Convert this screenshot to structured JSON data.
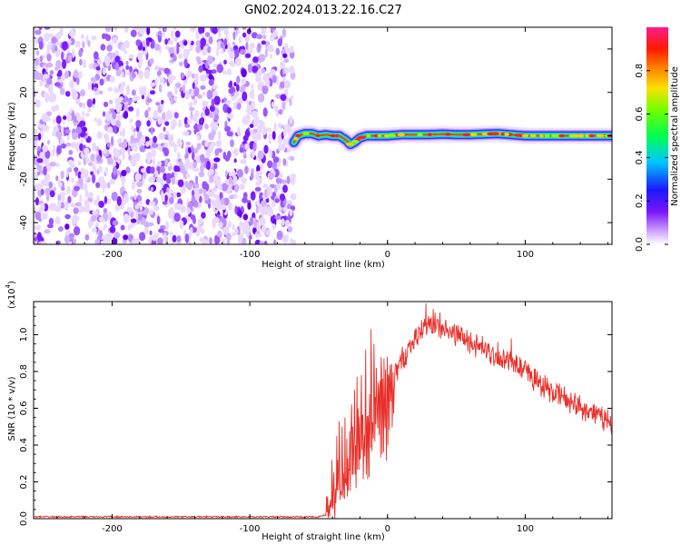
{
  "chart_data": [
    {
      "type": "heatmap",
      "title": "GN02.2024.013.22.16.C27",
      "xlabel": "Height of straight line (km)",
      "ylabel": "Frequency (Hz)",
      "xlim": [
        -257,
        163
      ],
      "ylim": [
        -50,
        50
      ],
      "x_ticks": [
        -200,
        -100,
        0,
        100
      ],
      "x_tick_labels": [
        "-200",
        "-100",
        "0",
        "100"
      ],
      "y_ticks": [
        -40,
        -20,
        0,
        20,
        40
      ],
      "y_tick_labels": [
        "-40",
        "-20",
        "0",
        "20",
        "40"
      ],
      "noise_region_x": [
        -257,
        -68
      ],
      "signal_ridge": [
        [
          -68,
          -3
        ],
        [
          -65,
          0
        ],
        [
          -60,
          1
        ],
        [
          -55,
          1
        ],
        [
          -50,
          0
        ],
        [
          -45,
          0.5
        ],
        [
          -40,
          0
        ],
        [
          -35,
          0
        ],
        [
          -30,
          -2
        ],
        [
          -27,
          -4
        ],
        [
          -24,
          -3
        ],
        [
          -20,
          -1
        ],
        [
          -15,
          0
        ],
        [
          -10,
          0
        ],
        [
          0,
          0
        ],
        [
          10,
          0.5
        ],
        [
          20,
          0.5
        ],
        [
          30,
          0.5
        ],
        [
          40,
          0.8
        ],
        [
          50,
          0.5
        ],
        [
          60,
          0.5
        ],
        [
          70,
          0.8
        ],
        [
          80,
          1
        ],
        [
          90,
          0.5
        ],
        [
          100,
          0
        ],
        [
          120,
          0
        ],
        [
          140,
          0
        ],
        [
          163,
          0
        ]
      ],
      "colorbar": {
        "label": "Normalized spectral amplitude",
        "range": [
          0,
          1
        ],
        "ticks": [
          0.0,
          0.2,
          0.4,
          0.6,
          0.8
        ],
        "tick_labels": [
          "0.0",
          "0.2",
          "0.4",
          "0.6",
          "0.8"
        ]
      }
    },
    {
      "type": "line",
      "xlabel": "Height of straight line (km)",
      "ylabel": "SNR (10 * v/v)",
      "y_multiplier": "(x10",
      "y_multiplier_exp": "4",
      "y_multiplier_close": ")",
      "xlim": [
        -257,
        163
      ],
      "ylim": [
        0,
        1.18
      ],
      "x_ticks": [
        -200,
        -100,
        0,
        100
      ],
      "x_tick_labels": [
        "-200",
        "-100",
        "0",
        "100"
      ],
      "y_ticks": [
        0.0,
        0.2,
        0.4,
        0.6,
        0.8,
        1.0
      ],
      "y_tick_labels": [
        "0.0",
        "0.2",
        "0.4",
        "0.6",
        "0.8",
        "1.0"
      ],
      "series": [
        {
          "name": "SNR",
          "color": "#e8302a",
          "envelope": [
            [
              -257,
              0.01
            ],
            [
              -100,
              0.01
            ],
            [
              -50,
              0.01
            ],
            [
              -45,
              0.02
            ],
            [
              -40,
              0.12
            ],
            [
              -35,
              0.22
            ],
            [
              -30,
              0.32
            ],
            [
              -25,
              0.4
            ],
            [
              -20,
              0.48
            ],
            [
              -15,
              0.55
            ],
            [
              -10,
              0.62
            ],
            [
              -5,
              0.68
            ],
            [
              0,
              0.74
            ],
            [
              5,
              0.78
            ],
            [
              10,
              0.86
            ],
            [
              15,
              0.92
            ],
            [
              20,
              0.98
            ],
            [
              25,
              1.02
            ],
            [
              30,
              1.05
            ],
            [
              35,
              1.05
            ],
            [
              40,
              1.03
            ],
            [
              50,
              1.0
            ],
            [
              60,
              0.96
            ],
            [
              70,
              0.92
            ],
            [
              80,
              0.88
            ],
            [
              90,
              0.84
            ],
            [
              100,
              0.79
            ],
            [
              110,
              0.74
            ],
            [
              120,
              0.69
            ],
            [
              130,
              0.65
            ],
            [
              140,
              0.61
            ],
            [
              150,
              0.57
            ],
            [
              163,
              0.52
            ]
          ],
          "spikes": [
            [
              -41,
              0.06
            ],
            [
              -37,
              0.45
            ],
            [
              -35,
              0.53
            ],
            [
              -33,
              0.5
            ],
            [
              -31,
              0.55
            ],
            [
              -26,
              0.62
            ],
            [
              -24,
              0.7
            ],
            [
              -22,
              0.77
            ],
            [
              -19,
              0.78
            ],
            [
              -16,
              0.92
            ],
            [
              -12,
              1.03
            ],
            [
              -10,
              0.95
            ],
            [
              -8,
              0.82
            ],
            [
              0,
              0.88
            ],
            [
              28,
              1.17
            ],
            [
              33,
              1.14
            ],
            [
              38,
              1.12
            ],
            [
              80,
              0.96
            ],
            [
              90,
              0.98
            ],
            [
              100,
              0.86
            ]
          ]
        }
      ]
    }
  ]
}
